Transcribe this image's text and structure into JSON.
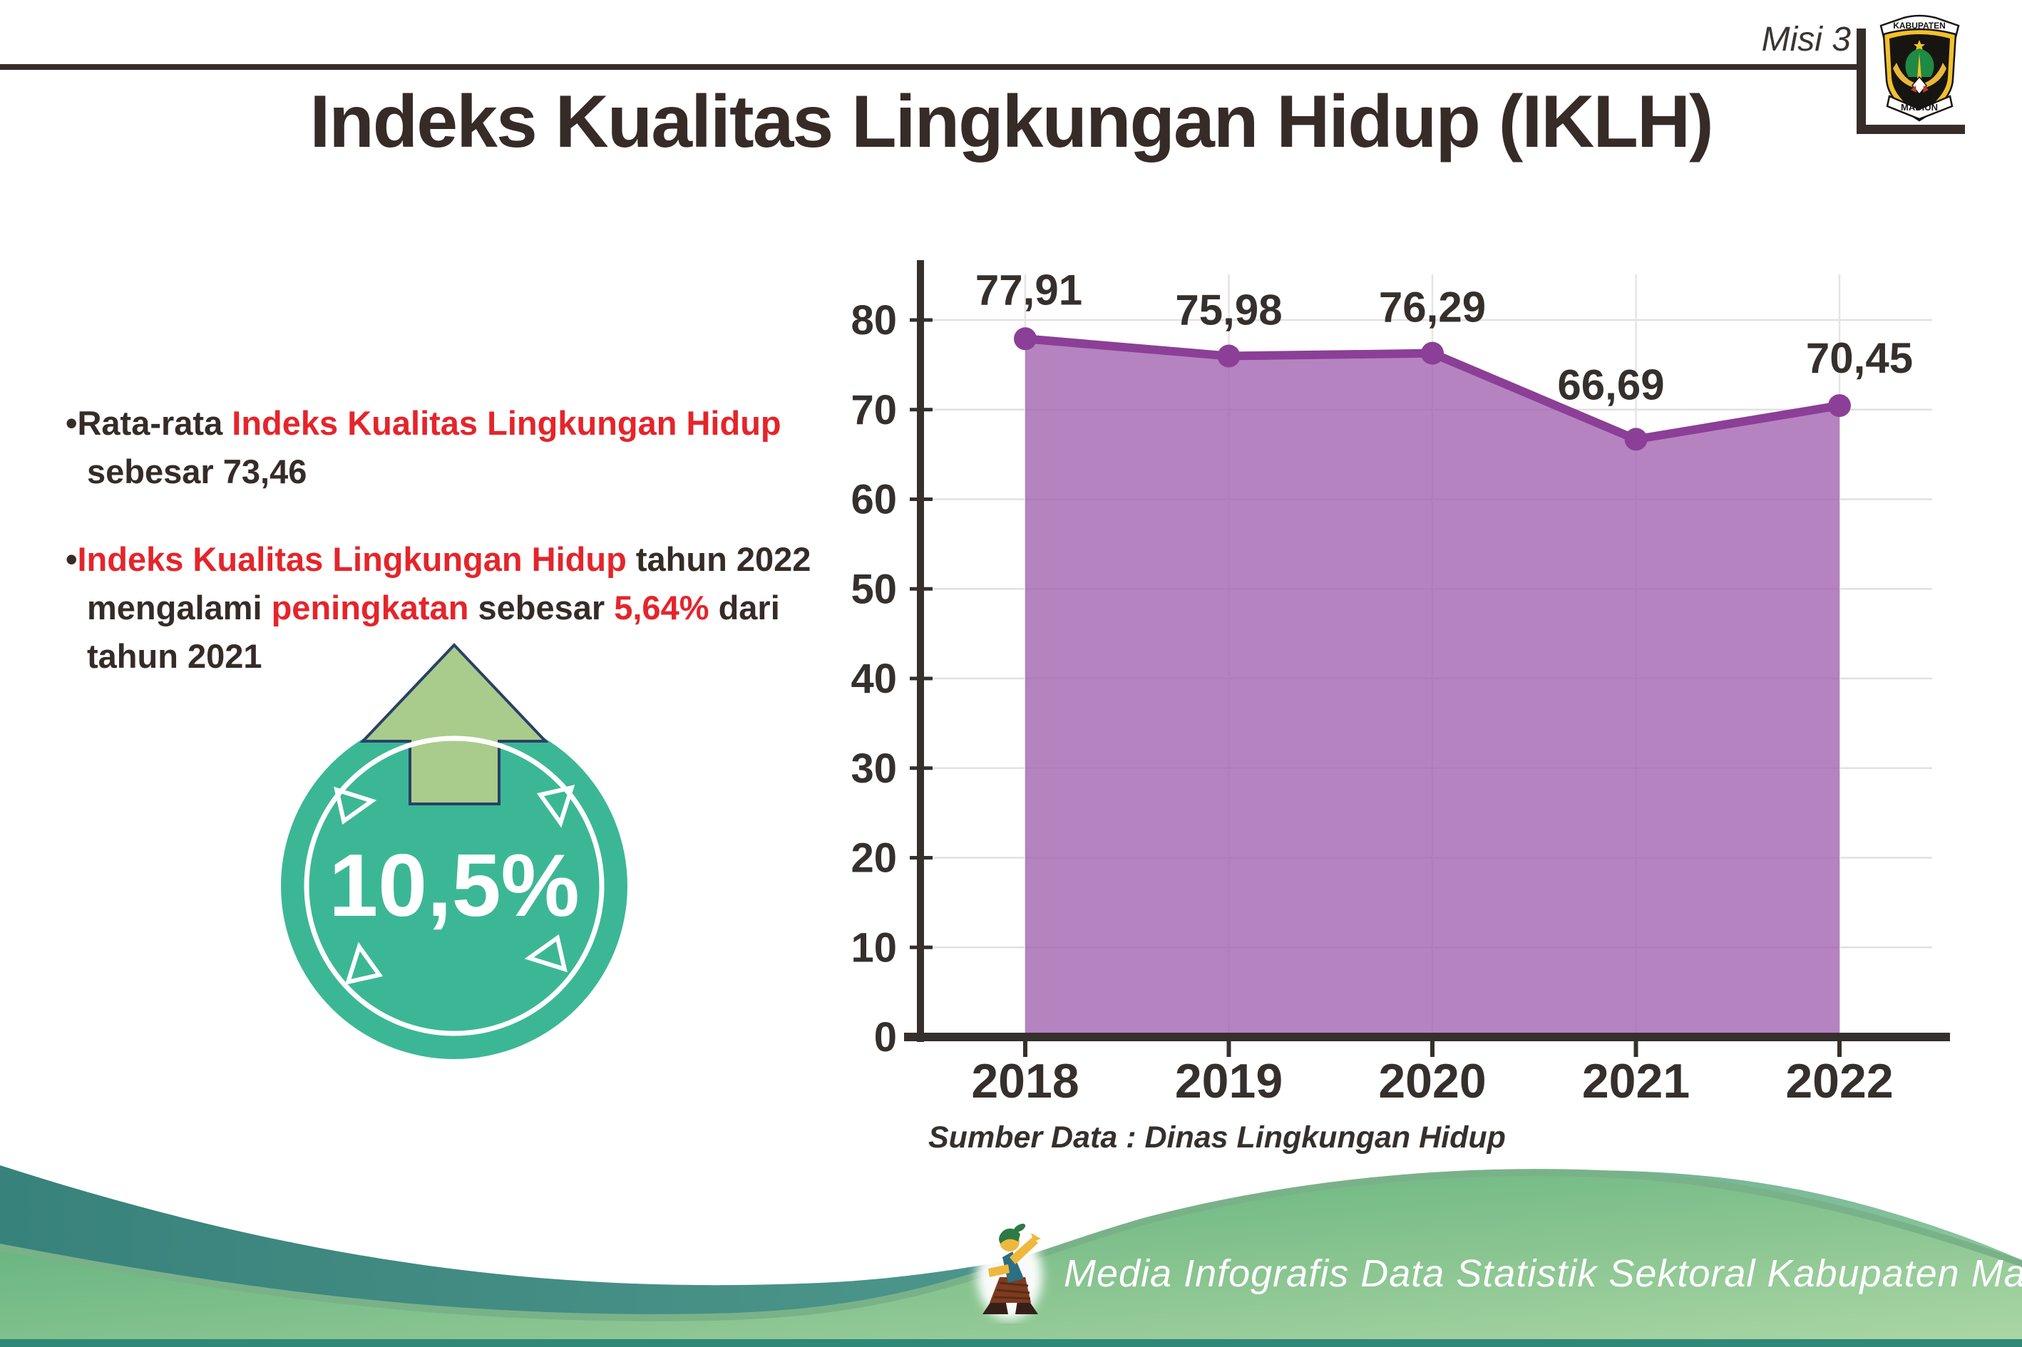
{
  "header": {
    "misi_label": "Misi 3",
    "title": "Indeks Kualitas Lingkungan Hidup (IKLH)",
    "logo": {
      "top_text": "KABUPATEN",
      "bottom_text": "MADIUN"
    }
  },
  "bullets": [
    {
      "segments": [
        {
          "t": "Rata-rata ",
          "c": "dark"
        },
        {
          "t": "Indeks Kualitas Lingkungan Hidup",
          "c": "red"
        },
        {
          "br": true
        },
        {
          "t": "sebesar 73,46",
          "c": "dark"
        }
      ]
    },
    {
      "segments": [
        {
          "t": "Indeks Kualitas Lingkungan Hidup",
          "c": "red"
        },
        {
          "t": " tahun 2022",
          "c": "dark"
        },
        {
          "br": true
        },
        {
          "t": "mengalami ",
          "c": "dark"
        },
        {
          "t": "peningkatan",
          "c": "red"
        },
        {
          "t": " sebesar ",
          "c": "dark"
        },
        {
          "t": "5,64%",
          "c": "red"
        },
        {
          "t": " dari",
          "c": "dark"
        },
        {
          "br": true
        },
        {
          "t": "tahun 2021",
          "c": "dark"
        }
      ]
    }
  ],
  "badge": {
    "value": "10,5%",
    "circle_color": "#3cb795",
    "arrow_color": "#a9cc8c",
    "arrow_outline": "#2a4068"
  },
  "chart_data": {
    "type": "area",
    "x": [
      "2018",
      "2019",
      "2020",
      "2021",
      "2022"
    ],
    "values": [
      77.91,
      75.98,
      76.29,
      66.69,
      70.45
    ],
    "labels": [
      "77,91",
      "75,98",
      "76,29",
      "66,69",
      "70,45"
    ],
    "title": "",
    "xlabel": "",
    "ylabel": "",
    "ylim": [
      0,
      85
    ],
    "yticks": [
      0,
      10,
      20,
      30,
      40,
      50,
      60,
      70,
      80
    ],
    "grid": true,
    "legend": "none",
    "source_note": "Sumber Data : Dinas Lingkungan Hidup",
    "colors": {
      "fill": "rgba(161,96,175,0.78)",
      "line": "#8b3f97",
      "axis": "#35302c",
      "gridline": "#e2e0e0"
    }
  },
  "footer": {
    "credit": "Media Infografis Data Statistik Sektoral Kabupaten Madiun |",
    "teal_wave_color": "#38827c",
    "green_wave_color": "#5cb17d",
    "bottom_strip_color": "#2f8878"
  },
  "accent_red": "#e4252b",
  "text_dark": "#352c28"
}
